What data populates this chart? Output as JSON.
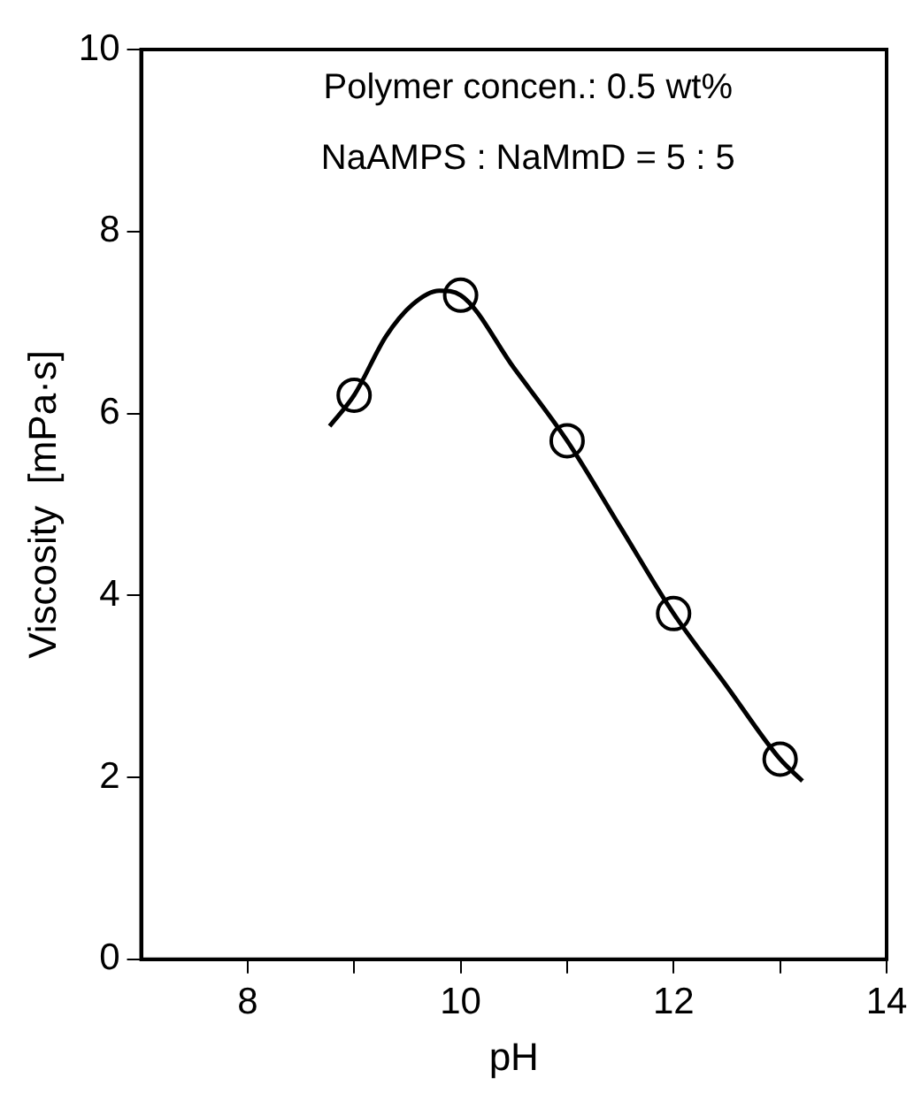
{
  "chart_data": {
    "type": "scatter",
    "xlabel": "pH",
    "ylabel": "Viscosity  [mPa·s]",
    "annotations": [
      "Polymer concen.: 0.5 wt%",
      "NaAMPS : NaMmD = 5 : 5"
    ],
    "x": [
      9,
      10,
      11,
      12,
      13
    ],
    "series": [
      {
        "type": "line",
        "color": "#000000",
        "marker": "none",
        "x": [
          8.77,
          9,
          9.3,
          9.55,
          9.8,
          10,
          10.5,
          11,
          11.5,
          12,
          12.5,
          13,
          13.21
        ],
        "values": [
          5.86,
          6.2,
          6.85,
          7.2,
          7.35,
          7.3,
          6.5,
          5.7,
          4.75,
          3.8,
          3.0,
          2.2,
          1.96
        ]
      },
      {
        "color": "#000000",
        "values": [
          6.2,
          7.3,
          5.7,
          3.8,
          2.2
        ]
      }
    ],
    "marker": "circle",
    "grid": false,
    "xlim": [
      7,
      14
    ],
    "xticks": [
      8,
      {
        "value": 9,
        "label": null
      },
      10,
      {
        "value": 11,
        "label": null
      },
      12,
      {
        "value": 13,
        "label": null
      },
      14
    ],
    "ylim": [
      0,
      10
    ],
    "yticks": [
      0,
      2,
      4,
      6,
      8,
      10
    ]
  }
}
